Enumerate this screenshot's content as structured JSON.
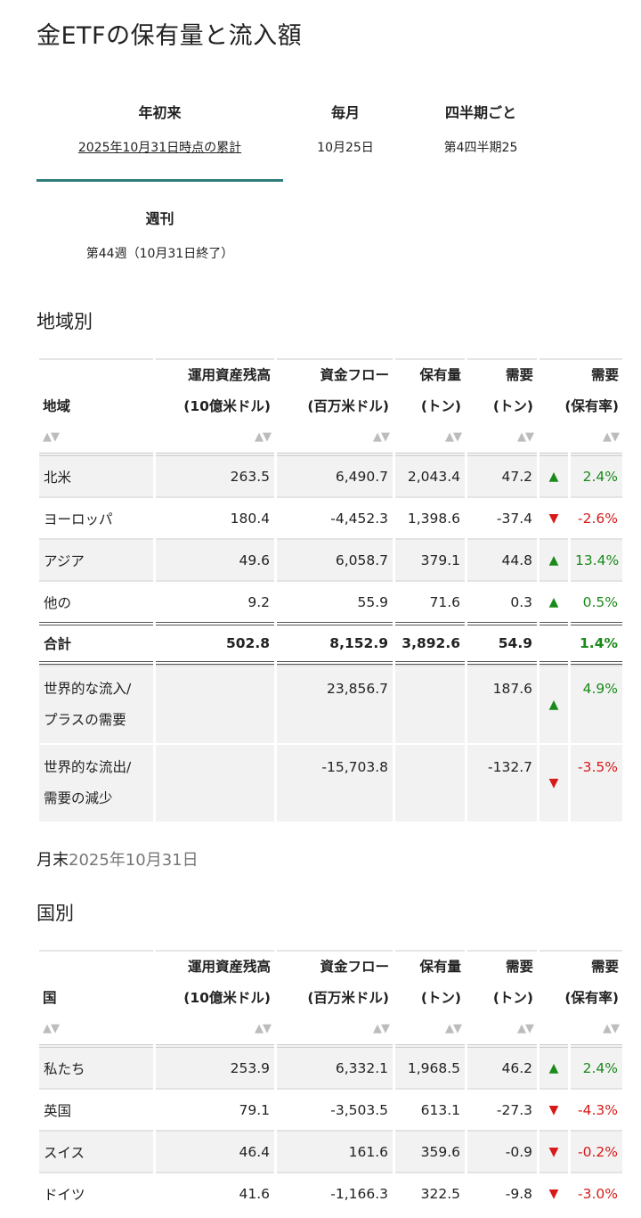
{
  "page": {
    "title": "金ETFの保有量と流入額"
  },
  "tabs": [
    {
      "name": "年初来",
      "sub": "2025年10月31日時点の累計"
    },
    {
      "name": "毎月",
      "sub": "10月25日"
    },
    {
      "name": "四半期ごと",
      "sub": "第4四半期25"
    },
    {
      "name": "週刊",
      "sub": "第44週（10月31日終了）"
    }
  ],
  "region": {
    "heading": "地域別",
    "headers": {
      "name_col": "地域",
      "aum_1": "運用資産残高",
      "aum_2": "(10億米ドル)",
      "flow_1": "資金フロー",
      "flow_2": "(百万米ドル)",
      "hold_1": "保有量",
      "hold_2": "(トン)",
      "dem_1": "需要",
      "dem_2": "(トン)",
      "pct_1": "需要",
      "pct_2": "(保有率)"
    },
    "rows": [
      {
        "name": "北米",
        "aum": "263.5",
        "flow": "6,490.7",
        "hold": "2,043.4",
        "dem": "47.2",
        "arrow": "▲",
        "pct": "2.4%",
        "dir": "up"
      },
      {
        "name": "ヨーロッパ",
        "aum": "180.4",
        "flow": "-4,452.3",
        "hold": "1,398.6",
        "dem": "-37.4",
        "arrow": "▼",
        "pct": "-2.6%",
        "dir": "down"
      },
      {
        "name": "アジア",
        "aum": "49.6",
        "flow": "6,058.7",
        "hold": "379.1",
        "dem": "44.8",
        "arrow": "▲",
        "pct": "13.4%",
        "dir": "up"
      },
      {
        "name": "他の",
        "aum": "9.2",
        "flow": "55.9",
        "hold": "71.6",
        "dem": "0.3",
        "arrow": "▲",
        "pct": "0.5%",
        "dir": "up"
      }
    ],
    "total": {
      "name": "合計",
      "aum": "502.8",
      "flow": "8,152.9",
      "hold": "3,892.6",
      "dem": "54.9",
      "pct": "1.4%"
    },
    "inflow": {
      "name_1": "世界的な流入/",
      "name_2": "プラスの需要",
      "flow": "23,856.7",
      "dem": "187.6",
      "arrow": "▲",
      "pct": "4.9%"
    },
    "outflow": {
      "name_1": "世界的な流出/",
      "name_2": "需要の減少",
      "flow": "-15,703.8",
      "dem": "-132.7",
      "arrow": "▼",
      "pct": "-3.5%"
    }
  },
  "month_end": {
    "label": "月末",
    "date": "2025年10月31日"
  },
  "country": {
    "heading": "国別",
    "headers": {
      "name_col": "国",
      "aum_1": "運用資産残高",
      "aum_2": "(10億米ドル)",
      "flow_1": "資金フロー",
      "flow_2": "(百万米ドル)",
      "hold_1": "保有量",
      "hold_2": "(トン)",
      "dem_1": "需要",
      "dem_2": "(トン)",
      "pct_1": "需要",
      "pct_2": "(保有率)"
    },
    "rows": [
      {
        "name": "私たち",
        "aum": "253.9",
        "flow": "6,332.1",
        "hold": "1,968.5",
        "dem": "46.2",
        "arrow": "▲",
        "pct": "2.4%",
        "dir": "up"
      },
      {
        "name": "英国",
        "aum": "79.1",
        "flow": "-3,503.5",
        "hold": "613.1",
        "dem": "-27.3",
        "arrow": "▼",
        "pct": "-4.3%",
        "dir": "down"
      },
      {
        "name": "スイス",
        "aum": "46.4",
        "flow": "161.6",
        "hold": "359.6",
        "dem": "-0.9",
        "arrow": "▼",
        "pct": "-0.2%",
        "dir": "down"
      },
      {
        "name": "ドイツ",
        "aum": "41.6",
        "flow": "-1,166.3",
        "hold": "322.5",
        "dem": "-9.8",
        "arrow": "▼",
        "pct": "-3.0%",
        "dir": "down"
      }
    ]
  },
  "sort_icon": "▲▼",
  "colors": {
    "accent": "#2e7d7a",
    "up": "#1a8a1a",
    "down": "#d81919"
  }
}
